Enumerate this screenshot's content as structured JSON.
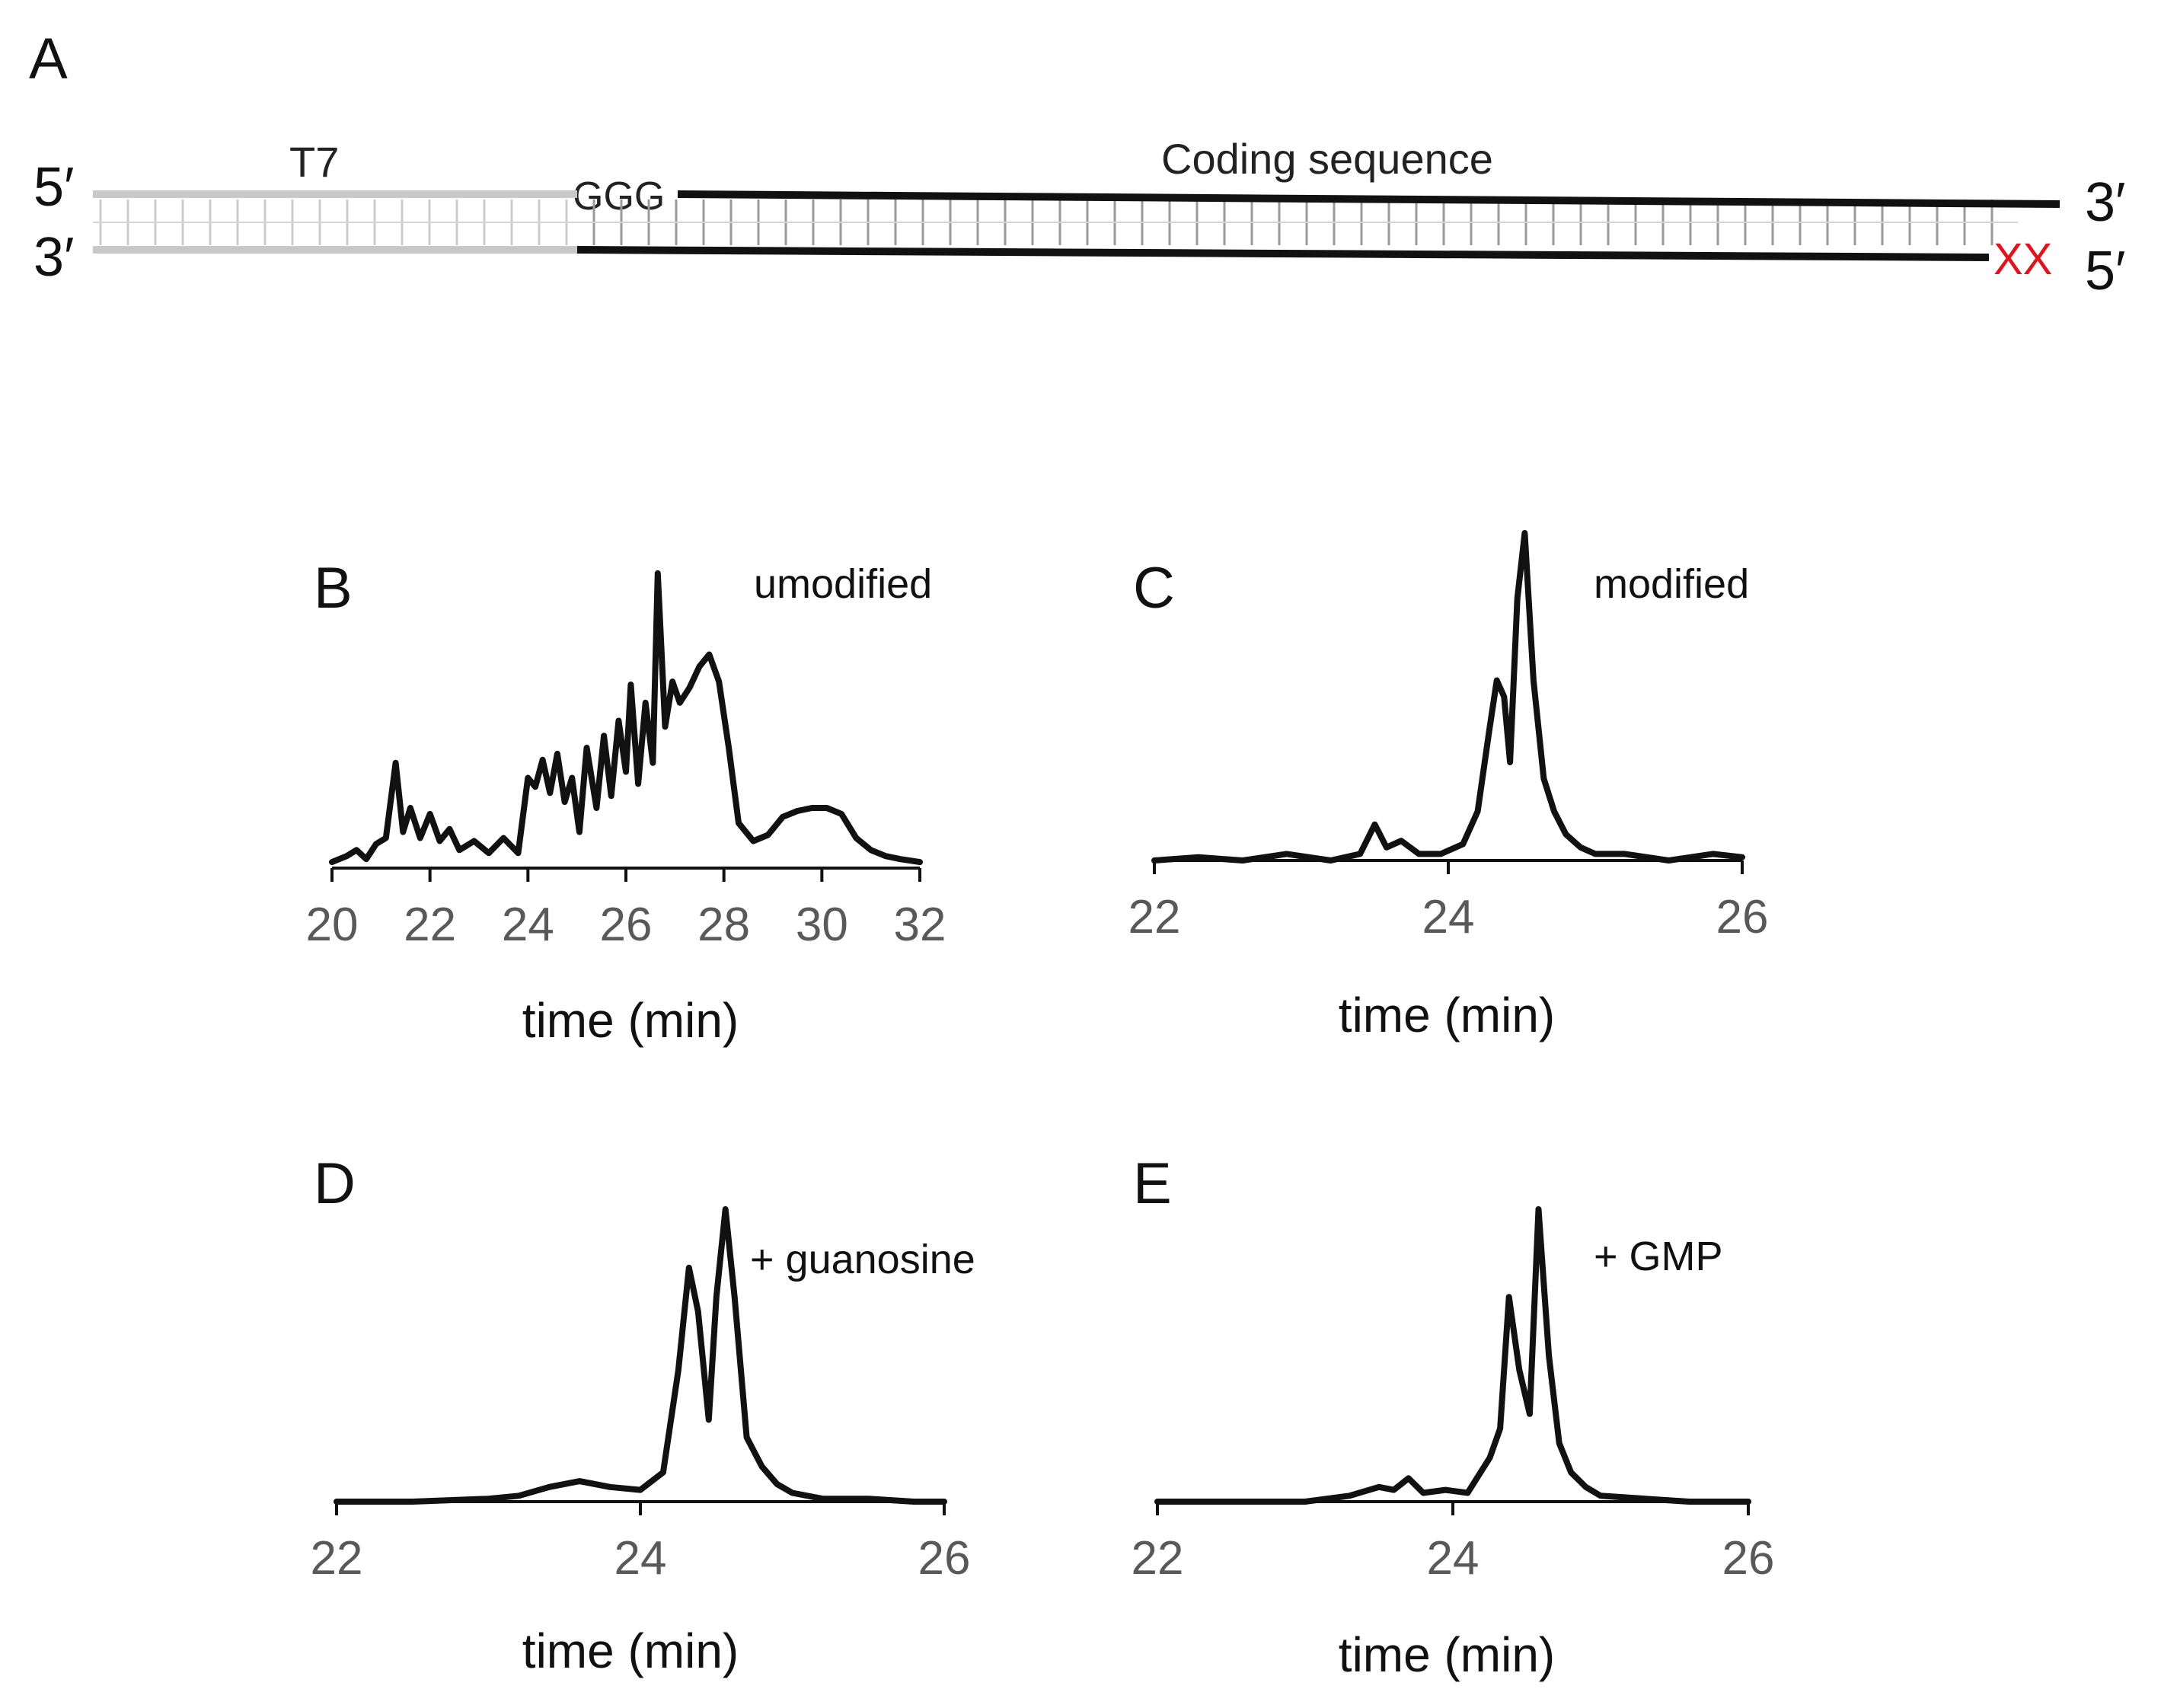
{
  "diagram": {
    "panel_label": "A",
    "top_strand_left_end": "5′",
    "top_strand_right_end": "3′",
    "bottom_strand_left_end": "3′",
    "bottom_strand_right_end": "5′",
    "promoter_label": "T7",
    "start_label": "GGG",
    "coding_label": "Coding sequence",
    "modification_mark": "XX",
    "colors": {
      "promoter": "#c8c8c8",
      "coding": "#111111",
      "modification": "#e0141e"
    }
  },
  "chart_data": [
    {
      "type": "line",
      "panel": "B",
      "annotation": "umodified",
      "xlabel": "time (min)",
      "ylabel": "",
      "xlim": [
        20,
        32
      ],
      "ylim": [
        0,
        1
      ],
      "xticks": [
        20,
        22,
        24,
        26,
        28,
        30,
        32
      ],
      "tick_labels": [
        "20",
        "22",
        "24",
        "26",
        "28",
        "30",
        "32"
      ],
      "x": [
        20.0,
        20.3,
        20.5,
        20.7,
        20.9,
        21.1,
        21.3,
        21.45,
        21.6,
        21.8,
        22.0,
        22.2,
        22.4,
        22.6,
        22.9,
        23.2,
        23.5,
        23.8,
        24.0,
        24.15,
        24.3,
        24.45,
        24.6,
        24.75,
        24.9,
        25.05,
        25.2,
        25.4,
        25.55,
        25.7,
        25.85,
        26.0,
        26.1,
        26.25,
        26.4,
        26.55,
        26.65,
        26.8,
        26.95,
        27.1,
        27.3,
        27.5,
        27.7,
        27.9,
        28.1,
        28.3,
        28.6,
        28.9,
        29.2,
        29.5,
        29.8,
        30.1,
        30.4,
        30.7,
        31.0,
        31.3,
        31.6,
        32.0
      ],
      "y": [
        0.02,
        0.04,
        0.06,
        0.03,
        0.08,
        0.1,
        0.35,
        0.12,
        0.2,
        0.1,
        0.18,
        0.09,
        0.13,
        0.06,
        0.09,
        0.05,
        0.1,
        0.05,
        0.3,
        0.27,
        0.36,
        0.25,
        0.38,
        0.22,
        0.3,
        0.12,
        0.4,
        0.2,
        0.44,
        0.24,
        0.49,
        0.32,
        0.61,
        0.28,
        0.55,
        0.35,
        0.98,
        0.47,
        0.62,
        0.55,
        0.6,
        0.67,
        0.71,
        0.62,
        0.4,
        0.15,
        0.09,
        0.11,
        0.17,
        0.19,
        0.2,
        0.2,
        0.18,
        0.1,
        0.06,
        0.04,
        0.03,
        0.02
      ]
    },
    {
      "type": "line",
      "panel": "C",
      "annotation": "modified",
      "xlabel": "time (min)",
      "ylabel": "",
      "xlim": [
        22,
        26
      ],
      "ylim": [
        0,
        1
      ],
      "xticks": [
        22,
        24,
        26
      ],
      "tick_labels": [
        "22",
        "24",
        "26"
      ],
      "x": [
        22.0,
        22.3,
        22.6,
        22.9,
        23.2,
        23.4,
        23.5,
        23.58,
        23.68,
        23.8,
        23.95,
        24.1,
        24.2,
        24.28,
        24.33,
        24.38,
        24.42,
        24.47,
        24.52,
        24.58,
        24.65,
        24.72,
        24.8,
        24.9,
        25.0,
        25.2,
        25.5,
        25.8,
        26.0
      ],
      "y": [
        0.0,
        0.01,
        0.0,
        0.02,
        0.0,
        0.02,
        0.11,
        0.04,
        0.06,
        0.02,
        0.02,
        0.05,
        0.15,
        0.4,
        0.55,
        0.5,
        0.3,
        0.8,
        1.0,
        0.55,
        0.25,
        0.15,
        0.08,
        0.04,
        0.02,
        0.02,
        0.0,
        0.02,
        0.01
      ]
    },
    {
      "type": "line",
      "panel": "D",
      "annotation": "+ guanosine",
      "xlabel": "time (min)",
      "ylabel": "",
      "xlim": [
        22,
        26
      ],
      "ylim": [
        0,
        1
      ],
      "xticks": [
        22,
        24,
        26
      ],
      "tick_labels": [
        "22",
        "24",
        "26"
      ],
      "x": [
        22.0,
        22.5,
        23.0,
        23.2,
        23.4,
        23.6,
        23.8,
        24.0,
        24.15,
        24.25,
        24.32,
        24.38,
        24.45,
        24.5,
        24.56,
        24.62,
        24.7,
        24.8,
        24.9,
        25.0,
        25.2,
        25.5,
        25.8,
        26.0
      ],
      "y": [
        0.0,
        0.0,
        0.01,
        0.02,
        0.05,
        0.07,
        0.05,
        0.04,
        0.1,
        0.45,
        0.8,
        0.65,
        0.28,
        0.7,
        1.0,
        0.7,
        0.22,
        0.12,
        0.06,
        0.03,
        0.01,
        0.01,
        0.0,
        0.0
      ]
    },
    {
      "type": "line",
      "panel": "E",
      "annotation": "+ GMP",
      "xlabel": "time (min)",
      "ylabel": "",
      "xlim": [
        22,
        26
      ],
      "ylim": [
        0,
        1
      ],
      "xticks": [
        22,
        24,
        26
      ],
      "tick_labels": [
        "22",
        "24",
        "26"
      ],
      "x": [
        22.0,
        22.5,
        23.0,
        23.3,
        23.5,
        23.6,
        23.7,
        23.8,
        23.95,
        24.1,
        24.25,
        24.32,
        24.38,
        24.45,
        24.52,
        24.58,
        24.65,
        24.72,
        24.8,
        24.9,
        25.0,
        25.3,
        25.6,
        26.0
      ],
      "y": [
        0.0,
        0.0,
        0.0,
        0.02,
        0.05,
        0.04,
        0.08,
        0.03,
        0.04,
        0.03,
        0.15,
        0.25,
        0.7,
        0.45,
        0.3,
        1.0,
        0.5,
        0.2,
        0.1,
        0.05,
        0.02,
        0.01,
        0.0,
        0.0
      ]
    }
  ]
}
